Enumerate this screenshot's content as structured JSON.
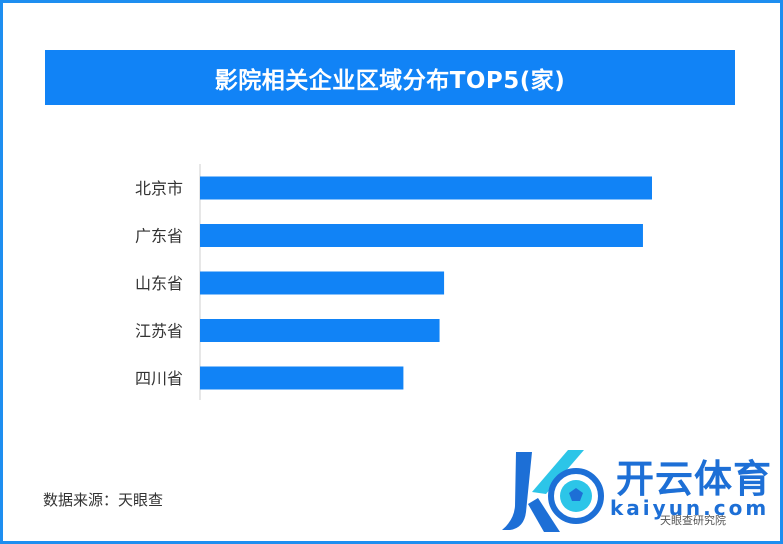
{
  "header": {
    "title": "影院相关企业区域分布TOP5(家)"
  },
  "chart_data": {
    "type": "bar",
    "orientation": "horizontal",
    "categories": [
      "北京市",
      "广东省",
      "山东省",
      "江苏省",
      "四川省"
    ],
    "values": [
      100,
      98,
      54,
      53,
      45
    ],
    "bar_color": "#1183F6",
    "value_labels": false,
    "grid": false
  },
  "footer": {
    "source": "数据来源：天眼查"
  },
  "watermark": {
    "brand": "开云体育",
    "url": "kaiyun.com",
    "mini": "天眼查研究院",
    "colors": {
      "primary": "#1D6FD6",
      "accent": "#2CC5E8"
    }
  }
}
